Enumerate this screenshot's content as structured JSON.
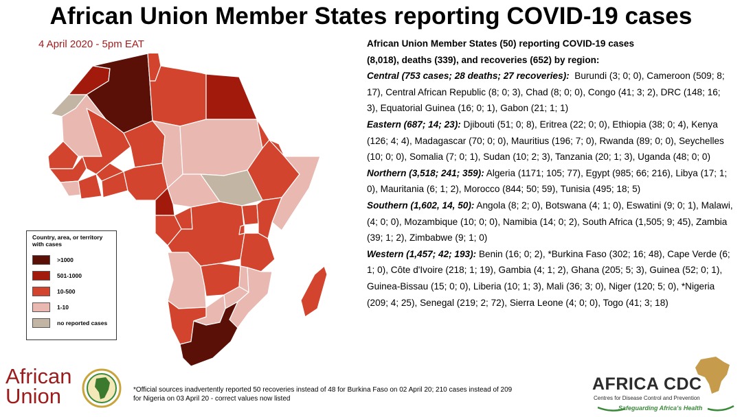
{
  "title": "African Union Member States reporting COVID-19 cases",
  "date": "4 April 2020 - 5pm EAT",
  "legend": {
    "title": "Country, area, or territory with cases",
    "items": [
      {
        "label": ">1000",
        "color": "#5a0f07"
      },
      {
        "label": "501-1000",
        "color": "#a11a0c"
      },
      {
        "label": "10-500",
        "color": "#d2442e"
      },
      {
        "label": "1-10",
        "color": "#e9b8b0"
      },
      {
        "label": "no reported cases",
        "color": "#c2b5a3"
      }
    ]
  },
  "summary": {
    "line1": "African Union Member States (50) reporting COVID-19 cases",
    "line2": "(8,018), deaths (339), and recoveries (652) by region:"
  },
  "regions": [
    {
      "label": "Central (753 cases; 28 deaths; 27 recoveries):",
      "details": "Burundi (3; 0; 0), Cameroon (509; 8; 17), Central African Republic (8; 0; 3), Chad (8; 0; 0), Congo (41; 3; 2), DRC (148; 16; 3), Equatorial Guinea (16; 0; 1), Gabon (21; 1; 1)"
    },
    {
      "label": "Eastern (687; 14; 23):",
      "details": "Djibouti (51; 0; 8), Eritrea (22; 0; 0), Ethiopia (38; 0; 4), Kenya (126; 4; 4), Madagascar (70; 0; 0), Mauritius (196; 7; 0), Rwanda (89; 0; 0), Seychelles (10; 0; 0), Somalia (7; 0; 1), Sudan (10; 2; 3), Tanzania (20; 1; 3), Uganda (48; 0; 0)"
    },
    {
      "label": "Northern (3,518; 241; 359):",
      "details": "Algeria (1171; 105; 77), Egypt (985; 66; 216), Libya (17; 1; 0), Mauritania (6; 1; 2), Morocco (844; 50; 59), Tunisia (495; 18; 5)"
    },
    {
      "label": "Southern (1,602, 14, 50):",
      "details": "Angola (8; 2; 0), Botswana (4; 1; 0), Eswatini (9; 0; 1), Malawi, (4; 0; 0), Mozambique (10; 0; 0), Namibia (14; 0; 2), South Africa (1,505; 9; 45), Zambia (39; 1; 2), Zimbabwe (9; 1; 0)"
    },
    {
      "label": "Western (1,457; 42; 193):",
      "details": "Benin (16; 0; 2), *Burkina Faso (302; 16; 48), Cape Verde (6; 1; 0), Côte d'Ivoire (218; 1; 19), Gambia (4; 1; 2), Ghana (205; 5; 3), Guinea (52; 0; 1), Guinea-Bissau (15; 0; 0), Liberia (10; 1; 3), Mali (36; 3; 0), Niger (120; 5; 0), *Nigeria (209; 4; 25), Senegal (219; 2; 72), Sierra Leone (4; 0; 0), Togo (41; 3; 18)"
    }
  ],
  "footnote": {
    "line1": "*Official sources inadvertently reported 50 recoveries  instead of 48 for Burkina Faso on 02 April 20; 210 cases instead of 209",
    "line2": "for Nigeria on 03 April 20 -  correct values now listed"
  },
  "logos": {
    "au_line1": "African",
    "au_line2": "Union",
    "cdc_name": "AFRICA CDC",
    "cdc_sub": "Centres for Disease Control and Prevention",
    "cdc_tagline": "Safeguarding Africa's Health"
  }
}
